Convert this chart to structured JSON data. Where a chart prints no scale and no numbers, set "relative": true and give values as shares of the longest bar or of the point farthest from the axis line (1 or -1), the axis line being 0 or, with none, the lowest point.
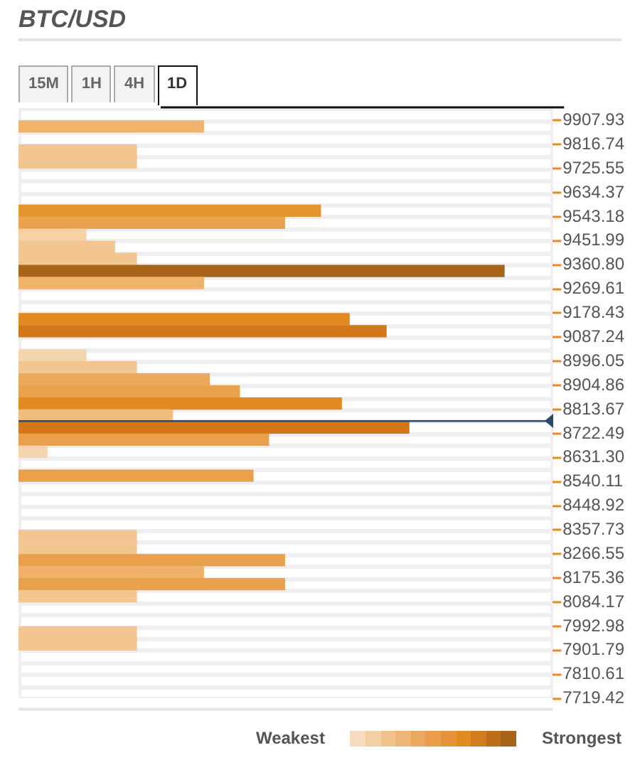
{
  "chart_data": {
    "type": "bar",
    "orientation": "horizontal",
    "relative": true,
    "title": "BTC/USD",
    "annotations": [
      "15M",
      "1H",
      "4H",
      "1D",
      "Weakest",
      "Strongest"
    ],
    "x": [
      9885.1,
      9793.9,
      9748.3,
      9565.9,
      9520.3,
      9474.8,
      9429.2,
      9383.6,
      9338.0,
      9292.4,
      9155.6,
      9110.0,
      9018.8,
      8973.2,
      8927.6,
      8882.0,
      8836.4,
      8790.8,
      8745.2,
      8699.6,
      8654.0,
      8562.9,
      8334.9,
      8289.3,
      8243.7,
      8198.1,
      8152.5,
      8107.0,
      7970.2,
      7924.6
    ],
    "values": [
      0.381,
      0.243,
      0.243,
      0.622,
      0.548,
      0.139,
      0.198,
      0.243,
      1.0,
      0.381,
      0.681,
      0.757,
      0.139,
      0.243,
      0.393,
      0.455,
      0.665,
      0.317,
      0.804,
      0.515,
      0.059,
      0.483,
      0.243,
      0.243,
      0.548,
      0.381,
      0.548,
      0.243,
      0.243,
      0.243
    ],
    "colors": [
      "#efb36b",
      "#f2c591",
      "#f2c591",
      "#e5952f",
      "#eba24e",
      "#f5d1a6",
      "#f2c591",
      "#f2c591",
      "#a86418",
      "#efb36b",
      "#e2891f",
      "#d2781a",
      "#f5d5b0",
      "#f2c591",
      "#eba95c",
      "#eba24e",
      "#e2891f",
      "#f0bc80",
      "#d2781a",
      "#e9a04d",
      "#f5d5b0",
      "#e9a04d",
      "#f2c591",
      "#f2c591",
      "#e9a04d",
      "#eeb26b",
      "#e9a04d",
      "#f2c591",
      "#f2c591",
      "#f2c591"
    ],
    "ylim": [
      7673.8,
      9953.5
    ],
    "yticks": [
      9907.93,
      9816.74,
      9725.55,
      9634.37,
      9543.18,
      9451.99,
      {
        "value": 9360.8,
        "label": "9360.80"
      },
      9269.61,
      9178.43,
      9087.24,
      8996.05,
      8904.86,
      8813.67,
      8722.49,
      {
        "value": 8631.3,
        "label": "8631.30"
      },
      8540.11,
      8448.92,
      8357.73,
      8266.55,
      8175.36,
      8084.17,
      7992.98,
      7901.79,
      7810.61,
      7719.42
    ],
    "ref_lines": [
      {
        "axis": "y",
        "value": 8770,
        "color": "#2c4a6e"
      }
    ],
    "tick_labels": "y",
    "legend": false,
    "grid": false
  }
}
